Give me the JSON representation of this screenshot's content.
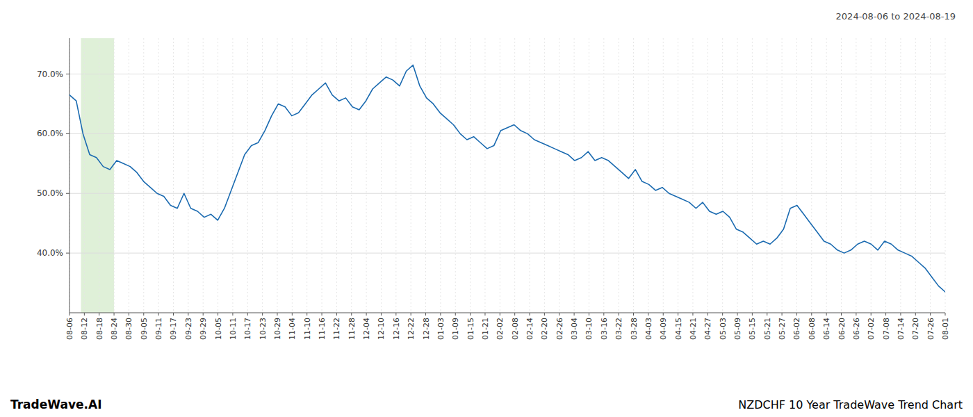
{
  "chart_data": {
    "type": "line",
    "title": "NZDCHF 10 Year TradeWave Trend Chart",
    "subtitle": "2024-08-06 to 2024-08-19",
    "annotations": [
      "TradeWave.AI"
    ],
    "color": "#1a6ab0",
    "grid": true,
    "highlight": {
      "start": 1.7034,
      "end": 6.6102,
      "color": "#dff0d8"
    },
    "xlim": [
      0,
      130
    ],
    "xticks": [
      {
        "value": 0,
        "label": "08-06"
      },
      {
        "value": 2.2034,
        "label": "08-12"
      },
      {
        "value": 4.4068,
        "label": "08-18"
      },
      {
        "value": 6.6102,
        "label": "08-24"
      },
      {
        "value": 8.8136,
        "label": "08-30"
      },
      {
        "value": 11.0169,
        "label": "09-05"
      },
      {
        "value": 13.2203,
        "label": "09-11"
      },
      {
        "value": 15.4237,
        "label": "09-17"
      },
      {
        "value": 17.6271,
        "label": "09-23"
      },
      {
        "value": 19.8305,
        "label": "09-29"
      },
      {
        "value": 22.0339,
        "label": "10-05"
      },
      {
        "value": 24.2373,
        "label": "10-11"
      },
      {
        "value": 26.4407,
        "label": "10-17"
      },
      {
        "value": 28.6441,
        "label": "10-23"
      },
      {
        "value": 30.8475,
        "label": "10-29"
      },
      {
        "value": 33.0508,
        "label": "11-04"
      },
      {
        "value": 35.2542,
        "label": "11-10"
      },
      {
        "value": 37.4576,
        "label": "11-16"
      },
      {
        "value": 39.661,
        "label": "11-22"
      },
      {
        "value": 41.8644,
        "label": "11-28"
      },
      {
        "value": 44.0678,
        "label": "12-04"
      },
      {
        "value": 46.2712,
        "label": "12-10"
      },
      {
        "value": 48.4746,
        "label": "12-16"
      },
      {
        "value": 50.678,
        "label": "12-22"
      },
      {
        "value": 52.8814,
        "label": "12-28"
      },
      {
        "value": 55.0847,
        "label": "01-03"
      },
      {
        "value": 57.2881,
        "label": "01-09"
      },
      {
        "value": 59.4915,
        "label": "01-15"
      },
      {
        "value": 61.6949,
        "label": "01-21"
      },
      {
        "value": 63.8983,
        "label": "02-02"
      },
      {
        "value": 66.1017,
        "label": "02-08"
      },
      {
        "value": 68.3051,
        "label": "02-14"
      },
      {
        "value": 70.5085,
        "label": "02-20"
      },
      {
        "value": 72.7119,
        "label": "02-26"
      },
      {
        "value": 74.9153,
        "label": "03-04"
      },
      {
        "value": 77.1186,
        "label": "03-10"
      },
      {
        "value": 79.322,
        "label": "03-16"
      },
      {
        "value": 81.5254,
        "label": "03-22"
      },
      {
        "value": 83.7288,
        "label": "03-28"
      },
      {
        "value": 85.9322,
        "label": "04-03"
      },
      {
        "value": 88.1356,
        "label": "04-09"
      },
      {
        "value": 90.339,
        "label": "04-15"
      },
      {
        "value": 92.5424,
        "label": "04-21"
      },
      {
        "value": 94.7458,
        "label": "04-27"
      },
      {
        "value": 96.9492,
        "label": "05-03"
      },
      {
        "value": 99.1525,
        "label": "05-09"
      },
      {
        "value": 101.3559,
        "label": "05-15"
      },
      {
        "value": 103.5593,
        "label": "05-21"
      },
      {
        "value": 105.7627,
        "label": "05-27"
      },
      {
        "value": 107.9661,
        "label": "06-02"
      },
      {
        "value": 110.1695,
        "label": "06-08"
      },
      {
        "value": 112.3729,
        "label": "06-14"
      },
      {
        "value": 114.5763,
        "label": "06-20"
      },
      {
        "value": 116.7797,
        "label": "06-26"
      },
      {
        "value": 118.9831,
        "label": "07-02"
      },
      {
        "value": 121.1864,
        "label": "07-08"
      },
      {
        "value": 123.3898,
        "label": "07-14"
      },
      {
        "value": 125.5932,
        "label": "07-20"
      },
      {
        "value": 127.7966,
        "label": "07-26"
      },
      {
        "value": 130,
        "label": "08-01"
      }
    ],
    "ylim": [
      30.0,
      76.0
    ],
    "yticks": [
      {
        "value": 40.0,
        "label": "40.0%"
      },
      {
        "value": 50.0,
        "label": "50.0%"
      },
      {
        "value": 60.0,
        "label": "60.0%"
      },
      {
        "value": 70.0,
        "label": "70.0%"
      }
    ],
    "values": [
      66.5,
      65.5,
      60.0,
      56.5,
      56.0,
      54.5,
      54.0,
      55.5,
      55.0,
      54.5,
      53.5,
      52.0,
      51.0,
      50.0,
      49.5,
      48.0,
      47.5,
      50.0,
      47.5,
      47.0,
      46.0,
      46.5,
      45.5,
      47.5,
      50.5,
      53.5,
      56.5,
      58.0,
      58.5,
      60.5,
      63.0,
      65.0,
      64.5,
      63.0,
      63.5,
      65.0,
      66.5,
      67.5,
      68.5,
      66.5,
      65.5,
      66.0,
      64.5,
      64.0,
      65.5,
      67.5,
      68.5,
      69.5,
      69.0,
      68.0,
      70.5,
      71.5,
      68.0,
      66.0,
      65.0,
      63.5,
      62.5,
      61.5,
      60.0,
      59.0,
      59.5,
      58.5,
      57.5,
      58.0,
      60.5,
      61.0,
      61.5,
      60.5,
      60.0,
      59.0,
      58.5,
      58.0,
      57.5,
      57.0,
      56.5,
      55.5,
      56.0,
      57.0,
      55.5,
      56.0,
      55.5,
      54.5,
      53.5,
      52.5,
      54.0,
      52.0,
      51.5,
      50.5,
      51.0,
      50.0,
      49.5,
      49.0,
      48.5,
      47.5,
      48.5,
      47.0,
      46.5,
      47.0,
      46.0,
      44.0,
      43.5,
      42.5,
      41.5,
      42.0,
      41.5,
      42.5,
      44.0,
      47.5,
      48.0,
      46.5,
      45.0,
      43.5,
      42.0,
      41.5,
      40.5,
      40.0,
      40.5,
      41.5,
      42.0,
      41.5,
      40.5,
      42.0,
      41.5,
      40.5,
      40.0,
      39.5,
      38.5,
      37.5,
      36.0,
      34.5,
      33.5
    ]
  }
}
